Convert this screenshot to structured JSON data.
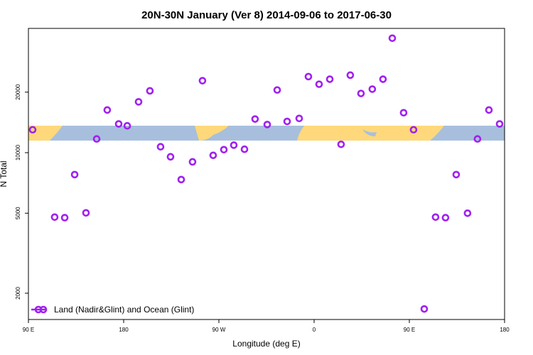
{
  "chart_data": {
    "type": "scatter",
    "title": "20N-30N January (Ver 8)   2014-09-06 to 2017-06-30",
    "xlabel": "Longitude (deg E)",
    "ylabel": "N Total",
    "log_y": true,
    "xlim": [
      90,
      540
    ],
    "ylim": [
      1480,
      41500
    ],
    "xticks": [
      {
        "value": 90,
        "label": "90 E"
      },
      180,
      {
        "value": 270,
        "label": "90 W"
      },
      {
        "value": 360,
        "label": "0"
      },
      {
        "value": 450,
        "label": "90 E"
      },
      {
        "value": 540,
        "label": "180"
      }
    ],
    "yticks": [
      2000,
      5000,
      10000,
      20000
    ],
    "legend_position": "lower left",
    "series": [
      {
        "name": "Land (Nadir&Glint) and Ocean (Glint)",
        "color": "#a020f0",
        "x": [
          94,
          114.8,
          124.3,
          133.7,
          144.4,
          154.5,
          164.5,
          175.3,
          183.4,
          194.1,
          204.8,
          214.9,
          224.3,
          234.4,
          245.1,
          254.5,
          264.6,
          274.7,
          284.1,
          294.2,
          304.2,
          315.7,
          325.1,
          334.5,
          345.9,
          354.6,
          364.7,
          374.8,
          385.5,
          394.2,
          404.3,
          415,
          425.1,
          433.9,
          444.6,
          454,
          464.1,
          474.8,
          484.2,
          494.3,
          505,
          514.4,
          525.2,
          535.3
        ],
        "values": [
          13000,
          4780,
          4750,
          7780,
          5020,
          11700,
          16300,
          13900,
          13600,
          17900,
          20300,
          10700,
          9540,
          7350,
          9000,
          22800,
          9700,
          10350,
          10900,
          10400,
          14700,
          13800,
          20500,
          14300,
          14800,
          23900,
          21900,
          23200,
          11000,
          24300,
          19700,
          20700,
          23200,
          37100,
          15800,
          13000,
          1670,
          4780,
          4750,
          7780,
          5000,
          11700,
          16300,
          13900
        ]
      }
    ]
  }
}
